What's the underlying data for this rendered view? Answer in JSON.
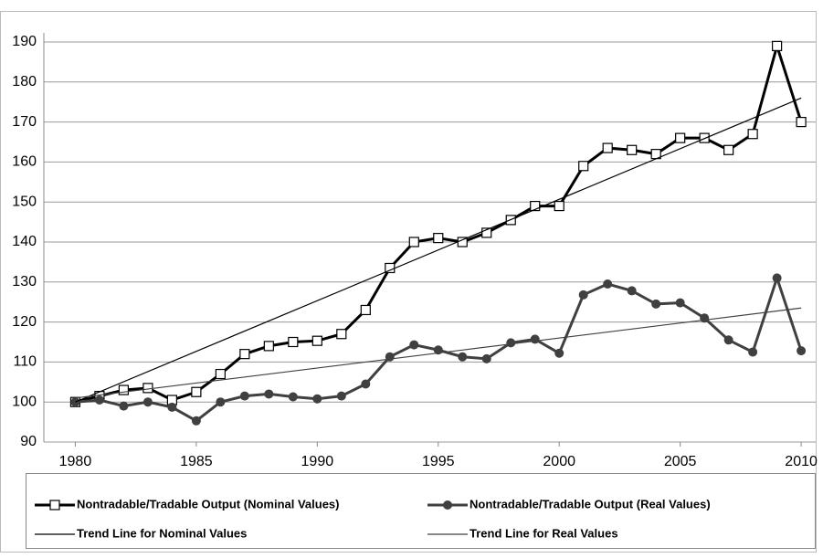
{
  "chart_data": {
    "type": "line",
    "x": [
      1980,
      1981,
      1982,
      1983,
      1984,
      1985,
      1986,
      1987,
      1988,
      1989,
      1990,
      1991,
      1992,
      1993,
      1994,
      1995,
      1996,
      1997,
      1998,
      1999,
      2000,
      2001,
      2002,
      2003,
      2004,
      2005,
      2006,
      2007,
      2008,
      2009,
      2010
    ],
    "series": [
      {
        "name": "Nontradable/Tradable Output (Nominal Values)",
        "color": "#000000",
        "marker": "square",
        "values": [
          100,
          101.5,
          103,
          103.5,
          100.5,
          102.5,
          107,
          112,
          114,
          115,
          115.3,
          117,
          123,
          133.5,
          140,
          141,
          140,
          142.3,
          145.5,
          149,
          149,
          159,
          163.5,
          163,
          162,
          166,
          166,
          163,
          167,
          189,
          170
        ]
      },
      {
        "name": "Nontradable/Tradable Output (Real Values)",
        "color": "#404040",
        "marker": "circle",
        "values": [
          100,
          100.5,
          99,
          100,
          98.7,
          95.3,
          100,
          101.5,
          102,
          101.3,
          100.8,
          101.5,
          104.5,
          111.3,
          114.3,
          113,
          111.3,
          110.8,
          114.8,
          115.7,
          112.2,
          126.8,
          129.5,
          127.8,
          124.5,
          124.8,
          121,
          115.5,
          112.5,
          131,
          112.8
        ]
      },
      {
        "name": "Trend Line for Nominal Values",
        "color": "#000000",
        "marker": "none",
        "x": [
          1980,
          2010
        ],
        "values": [
          100,
          176
        ]
      },
      {
        "name": "Trend Line for Real Values",
        "color": "#404040",
        "marker": "none",
        "x": [
          1980,
          2010
        ],
        "values": [
          101,
          123.5
        ]
      }
    ],
    "xlim": [
      1978.7,
      2010.6
    ],
    "xticks": [
      1980,
      1985,
      1990,
      1995,
      2000,
      2005,
      2010
    ],
    "ylim": [
      90,
      190
    ],
    "yticks": [
      90,
      100,
      110,
      120,
      130,
      140,
      150,
      160,
      170,
      180,
      190
    ],
    "grid": true,
    "legend": "bottom"
  }
}
